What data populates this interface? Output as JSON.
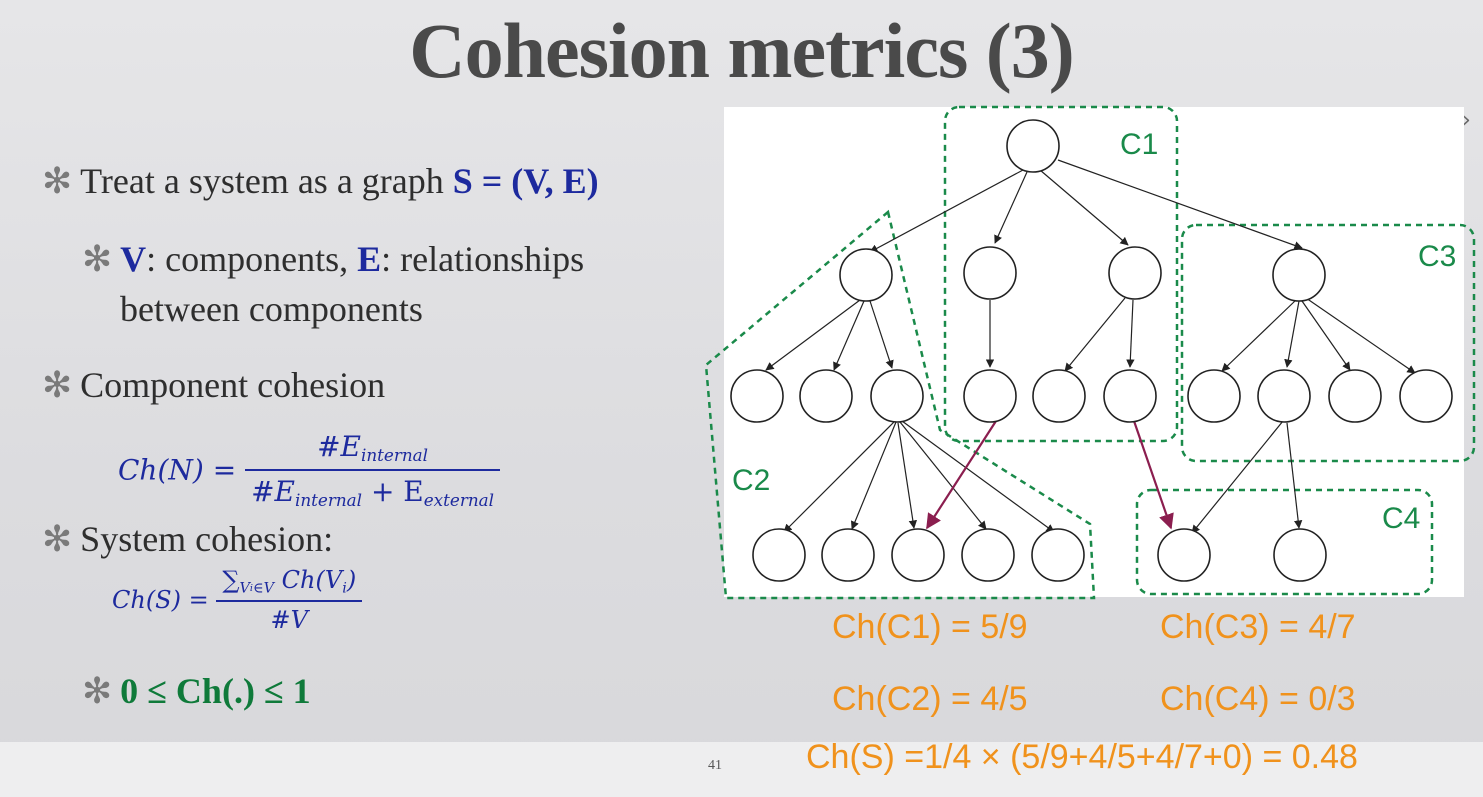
{
  "slide": {
    "title": "Cohesion metrics (3)",
    "page_number": "41",
    "nav_arrow": "›"
  },
  "bullets": {
    "b1_pre": "Treat a system as a graph ",
    "b1_graph": "S = (V, E)",
    "b2_v": "V",
    "b2_mid": ": components, ",
    "b2_e": "E",
    "b2_post": ": relationships",
    "b2_line2": "between components",
    "b3": "Component cohesion",
    "b4": "System cohesion:",
    "b5": "0 ≤ Ch(.) ≤ 1"
  },
  "formulas": {
    "component_lhs": "Ch(N) =",
    "component_num": "#E",
    "component_num_sub": "internal",
    "component_den_a": "#E",
    "component_den_a_sub": "internal",
    "component_den_plus": " + E",
    "component_den_b_sub": "external",
    "system_lhs": "Ch(S) =",
    "system_num": "∑",
    "system_num_sub": "V",
    "system_num_sub2": "i",
    "system_num_sub3": "∈V",
    "system_num_tail": " Ch(V",
    "system_num_tail_sub": "i",
    "system_num_close": ")",
    "system_den": "#V"
  },
  "diagram": {
    "cluster_labels": [
      "C1",
      "C2",
      "C3",
      "C4"
    ],
    "colors": {
      "cluster_border": "#1a8a4a",
      "cross_edge": "#8b1e4f",
      "edge": "#222222"
    }
  },
  "results": {
    "c1": "Ch(C1) = 5/9",
    "c2": "Ch(C2) = 4/5",
    "c3": "Ch(C3) = 4/7",
    "c4": "Ch(C4) = 0/3",
    "system": "Ch(S) =1/4 × (5/9+4/5+4/7+0) = 0.48"
  },
  "colors": {
    "title": "#4a4a4a",
    "accent_blue": "#1d2a9e",
    "accent_green": "#0f7a3a",
    "result_orange": "#f0921c"
  }
}
